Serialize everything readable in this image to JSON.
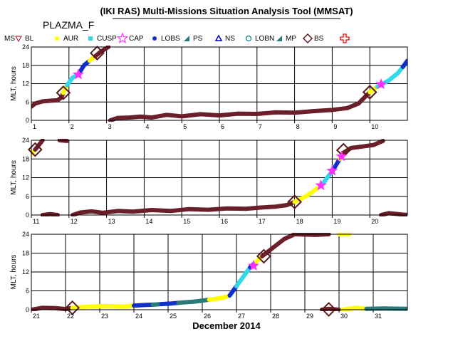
{
  "header": {
    "title": "(IKI RAS) Multi-Missions Situation Analysis Tool (MMSAT)",
    "satellite": "PLAZMA_F"
  },
  "legend": {
    "ms": "MS",
    "items": [
      {
        "label": "BL",
        "symbol": "triangle-down",
        "color": "#b03040"
      },
      {
        "label": "AUR",
        "symbol": "dot",
        "color": "#ffff00"
      },
      {
        "label": "CUSP",
        "symbol": "square",
        "color": "#30d8e8"
      },
      {
        "label": "CAP",
        "symbol": "star",
        "color": "#ff30ff"
      },
      {
        "label": "LOBS",
        "symbol": "dot",
        "color": "#1030c8"
      },
      {
        "label": "PS",
        "symbol": "tri-right",
        "color": "#2a7a7a"
      },
      {
        "label": "NS",
        "symbol": "triangle-up",
        "color": "#0000c0"
      },
      {
        "label": "LOBN",
        "symbol": "circle",
        "color": "#008080"
      },
      {
        "label": "MP",
        "symbol": "tri-right",
        "color": "#2a7a7a"
      },
      {
        "label": "BS",
        "symbol": "diamond",
        "color": "#5a1a1a"
      },
      {
        "label": "",
        "symbol": "cross",
        "color": "#ff0000"
      }
    ]
  },
  "colors": {
    "MS": "#6b1f2a",
    "AUR": "#ffff00",
    "CUSP": "#30d8e8",
    "CAP": "#ff30ff",
    "LOBS": "#1030c8",
    "PS": "#2a7a7a",
    "BS": "#5a1a1a"
  },
  "chart_data": [
    {
      "type": "line",
      "ylabel": "MLT, hours",
      "xlim": [
        1,
        11
      ],
      "ylim": [
        0,
        24
      ],
      "xticks": [
        "1",
        "2",
        "3",
        "4",
        "5",
        "6",
        "7",
        "8",
        "9",
        "10"
      ],
      "yticks": [
        "0",
        "6",
        "12",
        "18",
        "24"
      ],
      "segments": [
        {
          "region": "MS",
          "points": [
            [
              1.0,
              4.5
            ],
            [
              1.1,
              5.5
            ],
            [
              1.3,
              6.2
            ],
            [
              1.5,
              6.4
            ],
            [
              1.7,
              6.6
            ],
            [
              1.8,
              7.5
            ],
            [
              1.85,
              9.0
            ]
          ]
        },
        {
          "region": "AUR",
          "points": [
            [
              1.85,
              9.0
            ],
            [
              1.95,
              11.5
            ]
          ]
        },
        {
          "region": "CUSP",
          "points": [
            [
              1.95,
              11.5
            ],
            [
              2.1,
              14.0
            ],
            [
              2.25,
              15.0
            ]
          ]
        },
        {
          "region": "LOBS",
          "points": [
            [
              2.25,
              15.0
            ],
            [
              2.4,
              18.0
            ],
            [
              2.55,
              19.5
            ]
          ]
        },
        {
          "region": "AUR",
          "points": [
            [
              2.55,
              19.5
            ],
            [
              2.7,
              21.0
            ]
          ]
        },
        {
          "region": "MS",
          "points": [
            [
              2.7,
              21.0
            ],
            [
              2.85,
              22.5
            ],
            [
              3.05,
              24.0
            ]
          ]
        },
        {
          "region": "MS",
          "points": [
            [
              3.1,
              0.0
            ],
            [
              3.3,
              0.8
            ],
            [
              3.6,
              0.9
            ],
            [
              3.9,
              1.2
            ],
            [
              4.2,
              0.9
            ],
            [
              4.6,
              1.8
            ],
            [
              5.0,
              1.3
            ],
            [
              5.5,
              2.0
            ],
            [
              6.0,
              1.6
            ],
            [
              6.5,
              2.2
            ],
            [
              7.0,
              2.1
            ],
            [
              7.5,
              2.6
            ],
            [
              8.0,
              2.5
            ],
            [
              8.5,
              3.0
            ],
            [
              9.0,
              3.4
            ],
            [
              9.4,
              4.0
            ],
            [
              9.7,
              5.5
            ],
            [
              9.9,
              8.0
            ],
            [
              10.0,
              9.2
            ]
          ]
        },
        {
          "region": "AUR",
          "points": [
            [
              10.0,
              9.2
            ],
            [
              10.2,
              11.0
            ]
          ]
        },
        {
          "region": "CUSP",
          "points": [
            [
              10.2,
              11.0
            ],
            [
              10.5,
              13.0
            ],
            [
              10.75,
              15.5
            ],
            [
              10.88,
              17.5
            ]
          ]
        },
        {
          "region": "LOBS",
          "points": [
            [
              10.88,
              17.5
            ],
            [
              11.0,
              19.5
            ]
          ]
        }
      ],
      "events": [
        {
          "type": "BS",
          "x": 1.85,
          "y": 9.0
        },
        {
          "type": "BS",
          "x": 2.75,
          "y": 22.0
        },
        {
          "type": "BS",
          "x": 10.0,
          "y": 9.2
        },
        {
          "type": "CAP",
          "x": 2.25,
          "y": 15.0
        },
        {
          "type": "CAP",
          "x": 10.3,
          "y": 11.8
        }
      ]
    },
    {
      "type": "line",
      "ylabel": "MLT, hours",
      "xlim": [
        11,
        21
      ],
      "ylim": [
        0,
        24
      ],
      "xticks": [
        "11",
        "12",
        "13",
        "14",
        "15",
        "16",
        "17",
        "18",
        "19",
        "20"
      ],
      "yticks": [
        "0",
        "6",
        "12",
        "18",
        "24"
      ],
      "segments": [
        {
          "region": "AUR",
          "points": [
            [
              11.0,
              19.5
            ],
            [
              11.1,
              21.0
            ]
          ]
        },
        {
          "region": "MS",
          "points": [
            [
              11.1,
              21.0
            ],
            [
              11.2,
              22.5
            ],
            [
              11.3,
              24.0
            ]
          ]
        },
        {
          "region": "MS",
          "points": [
            [
              11.75,
              24.0
            ],
            [
              11.95,
              23.8
            ]
          ]
        },
        {
          "region": "MS",
          "points": [
            [
              11.3,
              0.0
            ],
            [
              11.5,
              0.3
            ],
            [
              11.7,
              0.0
            ]
          ]
        },
        {
          "region": "MS",
          "points": [
            [
              12.1,
              0.0
            ],
            [
              12.3,
              0.8
            ],
            [
              12.6,
              1.2
            ],
            [
              12.9,
              0.7
            ],
            [
              13.3,
              1.3
            ],
            [
              13.7,
              1.1
            ],
            [
              14.2,
              1.6
            ],
            [
              14.7,
              1.3
            ],
            [
              15.2,
              1.9
            ],
            [
              15.7,
              1.7
            ],
            [
              16.2,
              2.1
            ],
            [
              16.7,
              2.0
            ],
            [
              17.1,
              2.4
            ],
            [
              17.5,
              2.7
            ],
            [
              17.8,
              3.2
            ],
            [
              18.0,
              4.2
            ]
          ]
        },
        {
          "region": "AUR",
          "points": [
            [
              18.0,
              4.2
            ],
            [
              18.3,
              6.0
            ],
            [
              18.6,
              8.5
            ],
            [
              18.75,
              10.0
            ]
          ]
        },
        {
          "region": "CUSP",
          "points": [
            [
              18.75,
              10.0
            ],
            [
              18.9,
              12.5
            ],
            [
              19.0,
              14.0
            ]
          ]
        },
        {
          "region": "LOBS",
          "points": [
            [
              19.0,
              14.0
            ],
            [
              19.1,
              16.0
            ],
            [
              19.2,
              18.0
            ]
          ]
        },
        {
          "region": "AUR",
          "points": [
            [
              19.2,
              18.0
            ],
            [
              19.3,
              20.0
            ]
          ]
        },
        {
          "region": "MS",
          "points": [
            [
              19.3,
              20.0
            ],
            [
              19.5,
              21.5
            ],
            [
              19.8,
              22.0
            ],
            [
              20.1,
              22.5
            ],
            [
              20.35,
              23.8
            ]
          ]
        },
        {
          "region": "MS",
          "points": [
            [
              20.3,
              0.0
            ],
            [
              20.5,
              0.6
            ],
            [
              20.75,
              0.3
            ],
            [
              21.0,
              0.0
            ]
          ]
        }
      ],
      "events": [
        {
          "type": "BS",
          "x": 11.1,
          "y": 21.0
        },
        {
          "type": "BS",
          "x": 18.0,
          "y": 4.2
        },
        {
          "type": "BS",
          "x": 19.3,
          "y": 20.8
        },
        {
          "type": "CAP",
          "x": 18.7,
          "y": 9.5
        },
        {
          "type": "CAP",
          "x": 19.0,
          "y": 14.2
        },
        {
          "type": "CAP",
          "x": 19.25,
          "y": 18.8
        }
      ]
    },
    {
      "type": "line",
      "ylabel": "MLT, hours",
      "xlabel": "December 2014",
      "xlim": [
        21,
        32
      ],
      "ylim": [
        0,
        24
      ],
      "xticks": [
        "21",
        "22",
        "23",
        "24",
        "25",
        "26",
        "27",
        "28",
        "29",
        "30",
        "31"
      ],
      "yticks": [
        "0",
        "6",
        "12",
        "18",
        "24"
      ],
      "segments": [
        {
          "region": "MS",
          "points": [
            [
              21.0,
              0.0
            ],
            [
              21.3,
              0.6
            ],
            [
              21.7,
              0.5
            ],
            [
              22.0,
              0.2
            ],
            [
              22.2,
              0.6
            ]
          ]
        },
        {
          "region": "AUR",
          "points": [
            [
              22.2,
              0.6
            ],
            [
              22.7,
              1.0
            ],
            [
              23.2,
              1.2
            ],
            [
              23.7,
              1.0
            ],
            [
              24.0,
              1.3
            ]
          ]
        },
        {
          "region": "LOBS",
          "points": [
            [
              24.0,
              1.3
            ],
            [
              24.3,
              1.5
            ],
            [
              24.55,
              1.6
            ]
          ]
        },
        {
          "region": "PS",
          "points": [
            [
              24.55,
              1.6
            ],
            [
              24.8,
              1.8
            ]
          ]
        },
        {
          "region": "LOBS",
          "points": [
            [
              24.8,
              1.8
            ],
            [
              25.1,
              2.0
            ],
            [
              25.3,
              2.2
            ]
          ]
        },
        {
          "region": "PS",
          "points": [
            [
              25.3,
              2.2
            ],
            [
              25.8,
              2.6
            ],
            [
              26.2,
              3.2
            ]
          ]
        },
        {
          "region": "AUR",
          "points": [
            [
              26.2,
              3.2
            ],
            [
              26.6,
              3.8
            ],
            [
              26.8,
              4.5
            ]
          ]
        },
        {
          "region": "LOBS",
          "points": [
            [
              26.8,
              4.5
            ],
            [
              27.0,
              7.5
            ]
          ]
        },
        {
          "region": "CUSP",
          "points": [
            [
              27.0,
              7.5
            ],
            [
              27.2,
              10.5
            ],
            [
              27.4,
              13.5
            ]
          ]
        },
        {
          "region": "LOBS",
          "points": [
            [
              27.4,
              13.5
            ],
            [
              27.55,
              15.0
            ]
          ]
        },
        {
          "region": "AUR",
          "points": [
            [
              27.55,
              15.0
            ],
            [
              27.75,
              17.0
            ]
          ]
        },
        {
          "region": "MS",
          "points": [
            [
              27.75,
              17.0
            ],
            [
              28.1,
              20.0
            ],
            [
              28.4,
              22.5
            ],
            [
              28.7,
              24.0
            ]
          ]
        },
        {
          "region": "MS",
          "points": [
            [
              28.7,
              24.0
            ],
            [
              29.3,
              23.8
            ],
            [
              29.7,
              24.0
            ]
          ]
        },
        {
          "region": "AUR",
          "points": [
            [
              30.0,
              24.0
            ],
            [
              30.3,
              24.0
            ]
          ]
        },
        {
          "region": "MS",
          "points": [
            [
              29.5,
              0.0
            ],
            [
              29.7,
              0.3
            ],
            [
              30.0,
              0.0
            ]
          ]
        },
        {
          "region": "AUR",
          "points": [
            [
              30.1,
              0.0
            ],
            [
              30.5,
              0.6
            ],
            [
              30.8,
              0.3
            ]
          ]
        },
        {
          "region": "PS",
          "points": [
            [
              30.8,
              0.3
            ],
            [
              31.3,
              0.4
            ],
            [
              32.0,
              0.3
            ]
          ]
        }
      ],
      "events": [
        {
          "type": "BS",
          "x": 22.2,
          "y": 0.6
        },
        {
          "type": "BS",
          "x": 27.8,
          "y": 17.0
        },
        {
          "type": "BS",
          "x": 29.7,
          "y": 0.1
        },
        {
          "type": "CAP",
          "x": 27.5,
          "y": 14.0
        }
      ]
    }
  ]
}
